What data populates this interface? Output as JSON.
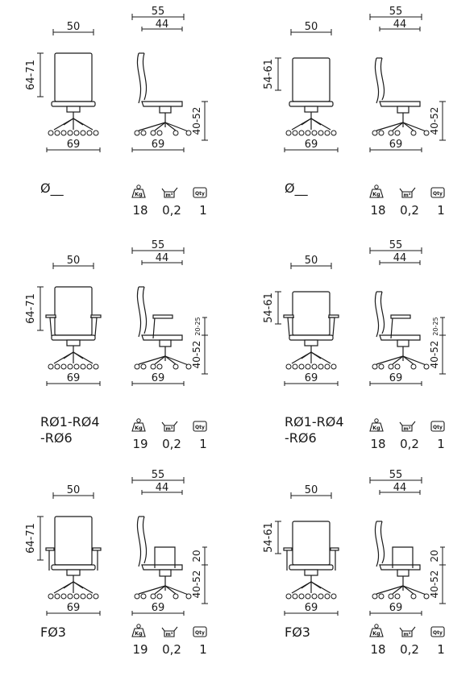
{
  "colors": {
    "line": "#1a1a1a"
  },
  "icons": {
    "weight": "weight-kg-icon",
    "volume": "volume-m3-icon",
    "quantity": "qty-box-icon"
  },
  "icon_text": {
    "kg": "Kg",
    "m3": "m³",
    "qty": "Qty"
  },
  "rows": [
    {
      "variant": "no-arms",
      "items": [
        {
          "front_width": "50",
          "side_depth": "55",
          "seat_depth": "44",
          "back_height": "64-71",
          "base": "69",
          "base_side": "69",
          "seat_height": "40-52",
          "arm_height": "",
          "model": "Ø__",
          "kg": "18",
          "m3": "0,2",
          "qty": "1"
        },
        {
          "front_width": "50",
          "side_depth": "55",
          "seat_depth": "44",
          "back_height": "54-61",
          "base": "69",
          "base_side": "69",
          "seat_height": "40-52",
          "arm_height": "",
          "model": "Ø__",
          "kg": "18",
          "m3": "0,2",
          "qty": "1"
        }
      ]
    },
    {
      "variant": "adjustable-arms",
      "items": [
        {
          "front_width": "50",
          "side_depth": "55",
          "seat_depth": "44",
          "back_height": "64-71",
          "base": "69",
          "base_side": "69",
          "seat_height": "40-52",
          "arm_height": "20-25",
          "model": "RØ1-RØ4\n-RØ6",
          "kg": "19",
          "m3": "0,2",
          "qty": "1"
        },
        {
          "front_width": "50",
          "side_depth": "55",
          "seat_depth": "44",
          "back_height": "54-61",
          "base": "69",
          "base_side": "69",
          "seat_height": "40-52",
          "arm_height": "20-25",
          "model": "RØ1-RØ4\n-RØ6",
          "kg": "18",
          "m3": "0,2",
          "qty": "1"
        }
      ]
    },
    {
      "variant": "fixed-arms",
      "items": [
        {
          "front_width": "50",
          "side_depth": "55",
          "seat_depth": "44",
          "back_height": "64-71",
          "base": "69",
          "base_side": "69",
          "seat_height": "40-52",
          "arm_height": "20",
          "model": "FØ3",
          "kg": "19",
          "m3": "0,2",
          "qty": "1"
        },
        {
          "front_width": "50",
          "side_depth": "55",
          "seat_depth": "44",
          "back_height": "54-61",
          "base": "69",
          "base_side": "69",
          "seat_height": "40-52",
          "arm_height": "20",
          "model": "FØ3",
          "kg": "18",
          "m3": "0,2",
          "qty": "1"
        }
      ]
    }
  ]
}
